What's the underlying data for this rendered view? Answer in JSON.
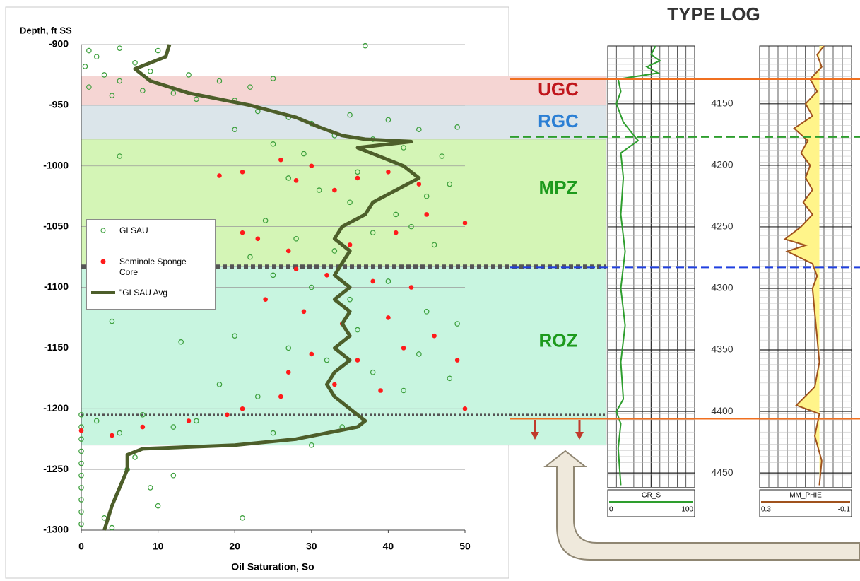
{
  "chart_data": [
    {
      "type": "scatter",
      "y_label": "Depth, ft SS",
      "x_label": "Oil Saturation, So",
      "xlim": [
        0,
        50
      ],
      "xticks": [
        0,
        10,
        20,
        30,
        40,
        50
      ],
      "ylim": [
        -1300,
        -900
      ],
      "yticks": [
        -900,
        -950,
        -1000,
        -1050,
        -1100,
        -1150,
        -1200,
        -1250,
        -1300
      ],
      "grid": true,
      "zones": [
        {
          "label": "UGC",
          "top": -926,
          "bottom": -950,
          "color": "#f5d5d3",
          "label_color": "#c0161c"
        },
        {
          "label": "RGC",
          "top": -950,
          "bottom": -978,
          "color": "#dbe5ea",
          "label_color": "#2b7fd4"
        },
        {
          "label": "MPZ",
          "top": -978,
          "bottom": -1083,
          "color": "#d4f5b6",
          "label_color": "#1d9a1d"
        },
        {
          "label": "ROZ",
          "top": -1083,
          "bottom": -1230,
          "color": "#c8f5e0",
          "label_color": "#1d9a1d"
        }
      ],
      "horizontal_lines": [
        {
          "depth": -1083,
          "style": "thick-dotted",
          "color": "#555555"
        },
        {
          "depth": -1205,
          "style": "dotted",
          "color": "#555555"
        }
      ],
      "series": [
        {
          "name": "GLSAU",
          "color": "#3a9e3a",
          "marker": "open-circle",
          "x": [
            1,
            2,
            0.5,
            3,
            5,
            1,
            7,
            9,
            12,
            15,
            18,
            22,
            25,
            10,
            5,
            37,
            4,
            8,
            14,
            20,
            23,
            27,
            30,
            35,
            40,
            44,
            49,
            33,
            25,
            29,
            42,
            47,
            5,
            38,
            20,
            27,
            31,
            35,
            41,
            45,
            48,
            24,
            28,
            33,
            38,
            46,
            22,
            36,
            43,
            25,
            30,
            35,
            40,
            45,
            49,
            20,
            27,
            32,
            38,
            44,
            48,
            13,
            18,
            23,
            4,
            42,
            36,
            0,
            0,
            0,
            0,
            0,
            0,
            0,
            0,
            0,
            0,
            2,
            5,
            8,
            12,
            15,
            25,
            30,
            6,
            9,
            10,
            3,
            21,
            4,
            7,
            12,
            34
          ],
          "y": [
            -905,
            -910,
            -918,
            -925,
            -930,
            -935,
            -915,
            -922,
            -940,
            -945,
            -930,
            -935,
            -928,
            -905,
            -903,
            -901,
            -942,
            -938,
            -925,
            -946,
            -955,
            -960,
            -965,
            -958,
            -962,
            -970,
            -968,
            -975,
            -982,
            -990,
            -985,
            -992,
            -992,
            -978,
            -970,
            -1010,
            -1020,
            -1030,
            -1040,
            -1025,
            -1015,
            -1045,
            -1060,
            -1070,
            -1055,
            -1065,
            -1075,
            -1005,
            -1050,
            -1090,
            -1100,
            -1110,
            -1095,
            -1120,
            -1130,
            -1140,
            -1150,
            -1160,
            -1170,
            -1155,
            -1175,
            -1145,
            -1180,
            -1190,
            -1128,
            -1185,
            -1135,
            -1205,
            -1215,
            -1225,
            -1235,
            -1245,
            -1255,
            -1265,
            -1275,
            -1285,
            -1295,
            -1210,
            -1220,
            -1205,
            -1215,
            -1210,
            -1220,
            -1230,
            -1250,
            -1265,
            -1280,
            -1290,
            -1290,
            -1298,
            -1240,
            -1255,
            -1215
          ]
        },
        {
          "name": "Seminole Sponge Core",
          "color": "#ff1a1a",
          "marker": "filled-circle",
          "x": [
            18,
            21,
            26,
            28,
            30,
            33,
            36,
            40,
            44,
            50,
            21,
            23,
            27,
            35,
            41,
            45,
            28,
            32,
            38,
            43,
            24,
            29,
            34,
            40,
            46,
            30,
            36,
            42,
            49,
            27,
            33,
            39,
            21,
            19,
            14,
            8,
            4,
            0,
            26,
            50
          ],
          "y": [
            -1008,
            -1005,
            -995,
            -1012,
            -1000,
            -1020,
            -1010,
            -1005,
            -1015,
            -1047,
            -1055,
            -1060,
            -1070,
            -1065,
            -1055,
            -1040,
            -1085,
            -1090,
            -1095,
            -1100,
            -1110,
            -1120,
            -1130,
            -1125,
            -1140,
            -1155,
            -1160,
            -1150,
            -1160,
            -1170,
            -1180,
            -1185,
            -1200,
            -1205,
            -1210,
            -1215,
            -1222,
            -1218,
            -1190,
            -1200
          ]
        },
        {
          "name": "\"GLSAU Avg",
          "color": "#4d5e2a",
          "marker": "line",
          "x": [
            11.5,
            11,
            7,
            9,
            14,
            22,
            28,
            31,
            34,
            37,
            43,
            36,
            38,
            42,
            44,
            41,
            38,
            37,
            34,
            33,
            35,
            34,
            33,
            35,
            33,
            35,
            34,
            35,
            33,
            35,
            33,
            32,
            33,
            35,
            37,
            36,
            28,
            20,
            8,
            6,
            6,
            5,
            4,
            3
          ],
          "y": [
            -900,
            -910,
            -920,
            -930,
            -940,
            -950,
            -960,
            -968,
            -975,
            -978,
            -980,
            -985,
            -990,
            -1000,
            -1010,
            -1020,
            -1030,
            -1040,
            -1050,
            -1060,
            -1070,
            -1080,
            -1090,
            -1100,
            -1110,
            -1120,
            -1130,
            -1140,
            -1150,
            -1160,
            -1170,
            -1180,
            -1190,
            -1200,
            -1210,
            -1215,
            -1225,
            -1230,
            -1233,
            -1238,
            -1250,
            -1265,
            -1280,
            -1300
          ]
        }
      ]
    },
    {
      "type": "well-log",
      "title": "TYPE LOG",
      "ylim": [
        4103,
        4462
      ],
      "y_inverted": true,
      "yticks": [
        4150,
        4200,
        4250,
        4300,
        4350,
        4400,
        4450
      ],
      "tops": [
        {
          "depth": 4130,
          "color": "#f07020",
          "style": "solid"
        },
        {
          "depth": 4177,
          "color": "#2e9e2e",
          "style": "dashed"
        },
        {
          "depth": 4283,
          "color": "#2040e0",
          "style": "dashed"
        },
        {
          "depth": 4406,
          "color": "#f07020",
          "style": "solid"
        }
      ],
      "tracks": [
        {
          "name": "GR_S",
          "color": "#2e9e2e",
          "xlim": [
            0,
            100
          ],
          "depth": [
            4103,
            4110,
            4115,
            4120,
            4125,
            4130,
            4140,
            4150,
            4165,
            4180,
            4190,
            4210,
            4240,
            4270,
            4300,
            4330,
            4360,
            4390,
            4400,
            4410,
            4430,
            4460
          ],
          "values": [
            55,
            50,
            60,
            45,
            58,
            12,
            15,
            10,
            18,
            35,
            15,
            18,
            15,
            20,
            15,
            20,
            15,
            18,
            10,
            15,
            12,
            15
          ]
        },
        {
          "name": "MM_PHIE",
          "color": "#a0521d",
          "fill": "#fff48a",
          "xlim": [
            0.3,
            -0.1
          ],
          "depth": [
            4103,
            4110,
            4120,
            4130,
            4140,
            4150,
            4160,
            4170,
            4180,
            4190,
            4200,
            4210,
            4220,
            4230,
            4240,
            4250,
            4260,
            4265,
            4270,
            4280,
            4290,
            4300,
            4320,
            4340,
            4360,
            4380,
            4395,
            4402,
            4420,
            4440,
            4460
          ],
          "values": [
            0.02,
            0.05,
            0.03,
            0.08,
            0.05,
            0.1,
            0.07,
            0.15,
            0.09,
            0.12,
            0.08,
            0.1,
            0.07,
            0.11,
            0.07,
            0.12,
            0.19,
            0.1,
            0.18,
            0.07,
            0.05,
            0.07,
            0.06,
            0.05,
            0.04,
            0.06,
            0.14,
            0.04,
            0.06,
            0.03,
            0.04
          ]
        }
      ]
    }
  ]
}
